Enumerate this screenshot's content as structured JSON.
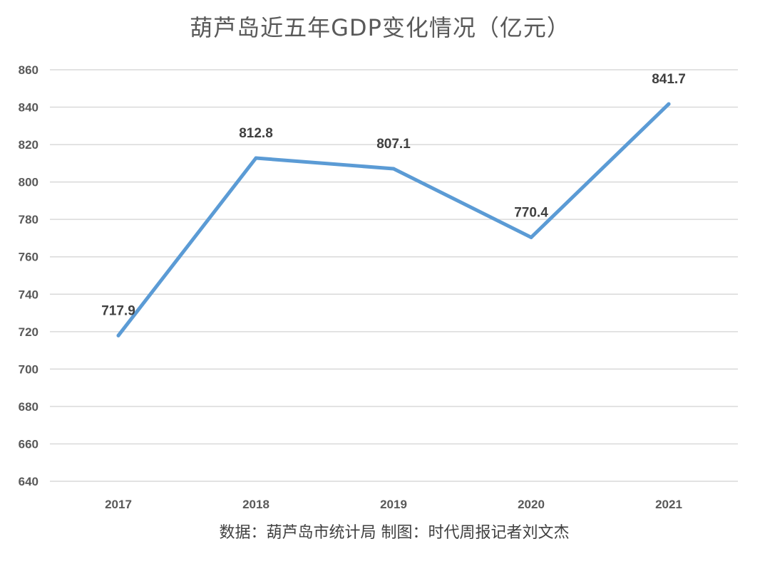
{
  "chart_data": {
    "type": "line",
    "title": "葫芦岛近五年GDP变化情况（亿元）",
    "categories": [
      "2017",
      "2018",
      "2019",
      "2020",
      "2021"
    ],
    "series": [
      {
        "values": [
          717.9,
          812.8,
          807.1,
          770.4,
          841.7
        ]
      }
    ],
    "data_labels": [
      "717.9",
      "812.8",
      "807.1",
      "770.4",
      "841.7"
    ],
    "yticks": [
      "640",
      "660",
      "680",
      "700",
      "720",
      "740",
      "760",
      "780",
      "800",
      "820",
      "840",
      "860"
    ],
    "ylim": [
      640,
      860
    ],
    "xlabel": "",
    "ylabel": "",
    "grid": true,
    "legend": "none",
    "line_color": "#5b9bd5",
    "grid_color": "#d9d9d9"
  },
  "source_note": "数据：葫芦岛市统计局  制图：时代周报记者刘文杰"
}
